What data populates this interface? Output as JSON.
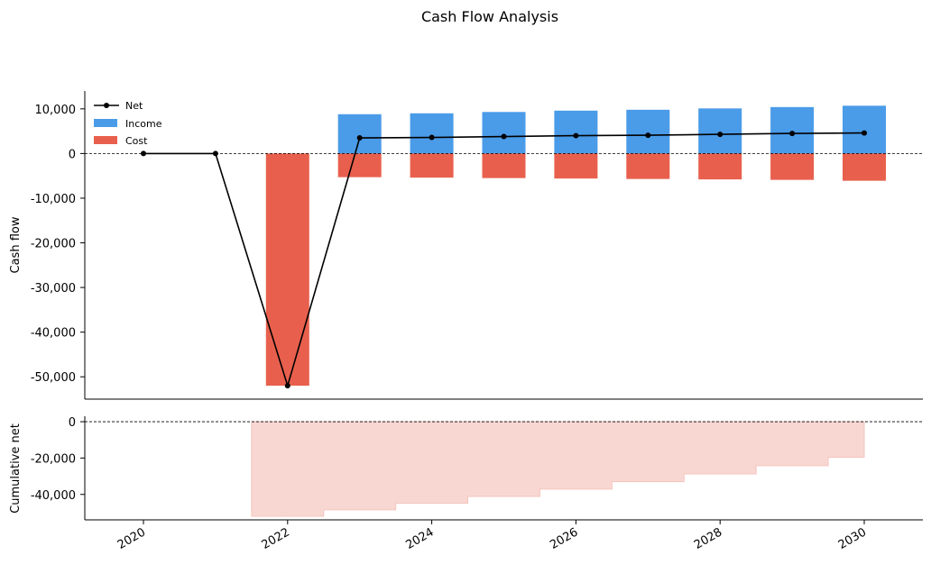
{
  "chart_data": {
    "type": "bar",
    "title": "Cash Flow Analysis",
    "x": [
      2020,
      2021,
      2022,
      2023,
      2024,
      2025,
      2026,
      2027,
      2028,
      2029,
      2030
    ],
    "xticks": [
      "2020",
      "2022",
      "2024",
      "2026",
      "2028",
      "2030"
    ],
    "legend_placement": "top-left",
    "grid": false,
    "colors": {
      "income": "#4a9be8",
      "cost": "#e8604d",
      "net": "#000000",
      "cumulative": "#f8d7d2"
    },
    "panels": [
      {
        "ylabel": "Cash flow",
        "ylim": [
          -55000,
          14000
        ],
        "yticks": [
          "10,000",
          "0",
          "-10,000",
          "-20,000",
          "-30,000",
          "-40,000",
          "-50,000"
        ],
        "ytick_values": [
          10000,
          0,
          -10000,
          -20000,
          -30000,
          -40000,
          -50000
        ],
        "series": [
          {
            "name": "Income",
            "type": "bar",
            "values": [
              0,
              0,
              0,
              8800,
              9000,
              9300,
              9600,
              9800,
              10100,
              10400,
              10700
            ]
          },
          {
            "name": "Cost",
            "type": "bar",
            "values": [
              0,
              0,
              -52000,
              -5300,
              -5400,
              -5500,
              -5600,
              -5700,
              -5800,
              -5900,
              -6100
            ]
          },
          {
            "name": "Net",
            "type": "line",
            "values": [
              0,
              0,
              -52000,
              3500,
              3600,
              3800,
              4000,
              4100,
              4300,
              4500,
              4600
            ]
          }
        ]
      },
      {
        "ylabel": "Cumulative net",
        "ylim": [
          -54000,
          3000
        ],
        "yticks": [
          "0",
          "-20,000",
          "-40,000"
        ],
        "ytick_values": [
          0,
          -20000,
          -40000
        ],
        "series": [
          {
            "type": "step-area",
            "values": [
              0,
              0,
              -52000,
              -48500,
              -44900,
              -41100,
              -37100,
              -33000,
              -28700,
              -24200,
              -19600
            ]
          }
        ]
      }
    ]
  }
}
